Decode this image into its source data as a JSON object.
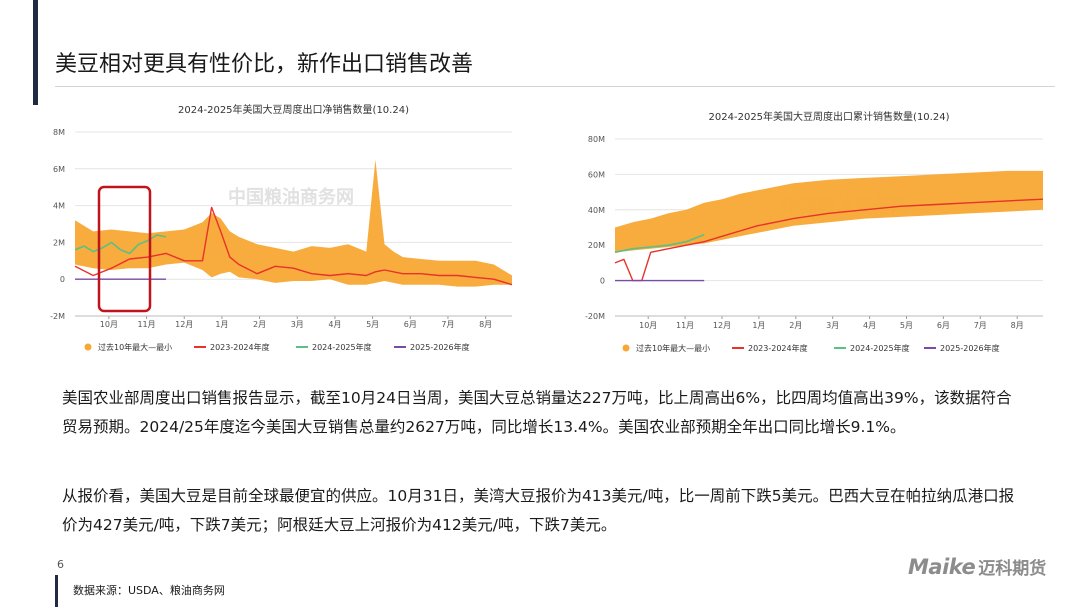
{
  "page": {
    "title": "美豆相对更具有性价比，新作出口销售改善",
    "paragraph1": "美国农业部周度出口销售报告显示，截至10月24日当周，美国大豆总销量达227万吨，比上周高出6%，比四周均值高出39%，该数据符合贸易预期。2024/25年度迄今美国大豆销售总量约2627万吨，同比增长13.4%。美国农业部预期全年出口同比增长9.1%。",
    "paragraph2": "从报价看，美国大豆是目前全球最便宜的供应。10月31日，美湾大豆报价为413美元/吨，比一周前下跌5美元。巴西大豆在帕拉纳瓜港口报价为427美元/吨，下跌7美元；阿根廷大豆上河报价为412美元/吨，下跌7美元。",
    "page_number": "6",
    "source": "数据来源：USDA、粮油商务网",
    "logo_en": "Maike",
    "logo_cn": "迈科期货",
    "watermark": "中国粮油商务网",
    "colors": {
      "band": "#f7a833",
      "line_2023": "#e8322a",
      "line_2024": "#5cbf85",
      "line_2025": "#7a4aa6",
      "highlight": "#c0141c"
    }
  },
  "chart_data": [
    {
      "type": "line",
      "title": "2024-2025年美国大豆周度出口净销售数量(10.24)",
      "ylim": [
        -2,
        8
      ],
      "yticks": [
        "-2M",
        "0",
        "2M",
        "4M",
        "6M",
        "8M"
      ],
      "xticks": [
        "10月",
        "11月",
        "12月",
        "1月",
        "2月",
        "3月",
        "4月",
        "5月",
        "6月",
        "7月",
        "8月"
      ],
      "xlim": [
        0,
        48
      ],
      "grid": true,
      "legend_position": "bottom",
      "band": {
        "name": "过去10年最大—最小",
        "x": [
          0,
          2,
          4,
          6,
          8,
          10,
          12,
          14,
          15,
          16,
          17,
          18,
          20,
          22,
          24,
          26,
          28,
          30,
          32,
          33,
          34,
          35,
          36,
          38,
          40,
          42,
          44,
          46,
          48
        ],
        "upper": [
          3.2,
          2.6,
          2.7,
          2.6,
          2.5,
          2.6,
          2.7,
          3.1,
          3.6,
          3.3,
          2.6,
          2.3,
          1.9,
          1.7,
          1.5,
          1.8,
          1.7,
          1.9,
          1.5,
          6.5,
          1.9,
          1.5,
          1.2,
          1.1,
          1.0,
          1.0,
          1.0,
          0.8,
          0.2
        ],
        "lower": [
          0.8,
          0.6,
          0.5,
          0.6,
          0.6,
          0.8,
          0.9,
          0.5,
          0.1,
          0.3,
          0.4,
          0.1,
          0.0,
          -0.2,
          -0.1,
          -0.1,
          0.0,
          -0.3,
          -0.3,
          -0.2,
          -0.1,
          -0.2,
          -0.3,
          -0.3,
          -0.3,
          -0.4,
          -0.4,
          -0.3,
          -0.3
        ]
      },
      "series": [
        {
          "name": "2023-2024年度",
          "x": [
            0,
            2,
            4,
            6,
            8,
            10,
            12,
            14,
            15,
            16,
            17,
            18,
            20,
            22,
            24,
            26,
            28,
            30,
            32,
            33,
            34,
            36,
            38,
            40,
            42,
            44,
            46,
            48
          ],
          "values": [
            0.7,
            0.2,
            0.6,
            1.1,
            1.2,
            1.4,
            1.0,
            1.0,
            3.9,
            2.6,
            1.2,
            0.8,
            0.3,
            0.7,
            0.6,
            0.3,
            0.2,
            0.3,
            0.2,
            0.4,
            0.5,
            0.3,
            0.3,
            0.2,
            0.2,
            0.1,
            0.0,
            -0.3
          ]
        },
        {
          "name": "2024-2025年度",
          "x": [
            0,
            1,
            2,
            3,
            4,
            5,
            6,
            7,
            8,
            9,
            10
          ],
          "values": [
            1.6,
            1.8,
            1.5,
            1.7,
            2.0,
            1.6,
            1.4,
            1.9,
            2.1,
            2.4,
            2.3
          ]
        },
        {
          "name": "2025-2026年度",
          "x": [
            0,
            10
          ],
          "values": [
            0,
            0
          ]
        }
      ]
    },
    {
      "type": "line",
      "title": "2024-2025年美国大豆周度出口累计销售数量(10.24)",
      "ylim": [
        -20,
        80
      ],
      "yticks": [
        "-20M",
        "0",
        "20M",
        "40M",
        "60M",
        "80M"
      ],
      "xticks": [
        "10月",
        "11月",
        "12月",
        "1月",
        "2月",
        "3月",
        "4月",
        "5月",
        "6月",
        "7月",
        "8月"
      ],
      "xlim": [
        0,
        48
      ],
      "grid": true,
      "legend_position": "bottom",
      "band": {
        "name": "过去10年最大—最小",
        "x": [
          0,
          2,
          4,
          6,
          8,
          10,
          12,
          14,
          16,
          18,
          20,
          24,
          28,
          32,
          36,
          40,
          44,
          48
        ],
        "upper": [
          30,
          33,
          35,
          38,
          40,
          44,
          46,
          49,
          51,
          53,
          55,
          57,
          58,
          59,
          60,
          61,
          62,
          62
        ],
        "lower": [
          16,
          17,
          18,
          19,
          20,
          21,
          23,
          25,
          27,
          29,
          31,
          33,
          35,
          36,
          37,
          38,
          39,
          40
        ]
      },
      "series": [
        {
          "name": "2023-2024年度",
          "x": [
            0,
            1,
            2,
            3,
            4,
            6,
            8,
            10,
            12,
            14,
            16,
            18,
            20,
            24,
            28,
            32,
            36,
            40,
            44,
            48
          ],
          "values": [
            10,
            12,
            0,
            0,
            16,
            18,
            20,
            22,
            25,
            28,
            31,
            33,
            35,
            38,
            40,
            42,
            43,
            44,
            45,
            46
          ]
        },
        {
          "name": "2024-2025年度",
          "x": [
            0,
            2,
            4,
            6,
            8,
            10
          ],
          "values": [
            16,
            18,
            19,
            20,
            22,
            26
          ]
        },
        {
          "name": "2025-2026年度",
          "x": [
            0,
            10
          ],
          "values": [
            0,
            0
          ]
        }
      ]
    }
  ]
}
